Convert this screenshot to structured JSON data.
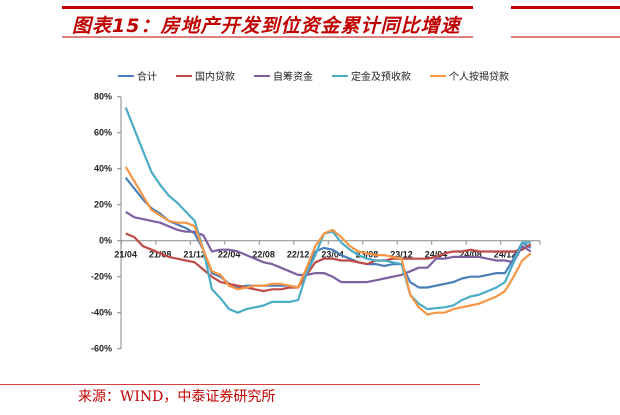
{
  "header": {
    "title": "图表15：房地产开发到位资金累计同比增速"
  },
  "footer": {
    "source": "来源：WIND，中泰证券研究所"
  },
  "chart_data": {
    "type": "line",
    "title": "图表15：房地产开发到位资金累计同比增速",
    "xlabel": "",
    "ylabel": "",
    "x": [
      "21/04",
      "21/05",
      "21/06",
      "21/07",
      "21/08",
      "21/09",
      "21/10",
      "21/11",
      "21/12",
      "22/01",
      "22/02",
      "22/03",
      "22/04",
      "22/05",
      "22/06",
      "22/07",
      "22/08",
      "22/09",
      "22/10",
      "22/11",
      "22/12",
      "23/01",
      "23/02",
      "23/03",
      "23/04",
      "23/05",
      "23/06",
      "23/07",
      "23/08",
      "23/09",
      "23/10",
      "23/11",
      "23/12",
      "24/01",
      "24/02",
      "24/03",
      "24/04",
      "24/05",
      "24/06",
      "24/07",
      "24/08",
      "24/09",
      "24/10",
      "24/11",
      "24/12",
      "25/01",
      "25/02",
      "25/03"
    ],
    "xticks": [
      "21/04",
      "21/08",
      "21/12",
      "22/04",
      "22/08",
      "22/12",
      "23/04",
      "23/08",
      "23/12",
      "24/04",
      "24/08",
      "24/12"
    ],
    "yticks": [
      "80%",
      "60%",
      "40%",
      "20%",
      "0%",
      "-20%",
      "-40%",
      "-60%"
    ],
    "ylim": [
      -60,
      80
    ],
    "grid": false,
    "legend_position": "top",
    "series": [
      {
        "name": "合计",
        "color": "#4a7ebb",
        "values": [
          35,
          29,
          23,
          18,
          15,
          11,
          9,
          7,
          4,
          -5,
          -18,
          -20,
          -24,
          -26,
          -25,
          -25,
          -25,
          -25,
          -25,
          -25,
          -26,
          -15,
          -6,
          -4,
          -5,
          -8,
          -10,
          -12,
          -13,
          -13,
          -14,
          -13,
          -13,
          -23,
          -26,
          -26,
          -25,
          -24,
          -23,
          -21,
          -20,
          -20,
          -19,
          -18,
          -18,
          -10,
          -1,
          -4
        ]
      },
      {
        "name": "国内贷款",
        "color": "#be4b48",
        "values": [
          4,
          2,
          -3,
          -5,
          -7,
          -9,
          -10,
          -11,
          -12,
          -16,
          -20,
          -23,
          -24,
          -25,
          -26,
          -27,
          -28,
          -27,
          -27,
          -26,
          -26,
          -19,
          -12,
          -10,
          -10,
          -11,
          -11,
          -12,
          -13,
          -11,
          -11,
          -10,
          -10,
          -10,
          -10,
          -10,
          -9,
          -7,
          -6,
          -6,
          -5,
          -6,
          -6,
          -6,
          -6,
          -6,
          -5,
          -2
        ]
      },
      {
        "name": "自筹资金",
        "color": "#7d60a0",
        "values": [
          16,
          13,
          12,
          11,
          10,
          8,
          6,
          5,
          5,
          3,
          -6,
          -5,
          -5,
          -6,
          -8,
          -10,
          -12,
          -13,
          -15,
          -17,
          -19,
          -19,
          -18,
          -18,
          -20,
          -23,
          -23,
          -23,
          -23,
          -22,
          -21,
          -20,
          -19,
          -17,
          -15,
          -15,
          -10,
          -10,
          -9,
          -9,
          -9,
          -9,
          -10,
          -11,
          -11,
          -12,
          -3,
          -6
        ]
      },
      {
        "name": "定金及预收款",
        "color": "#4bacc6",
        "values": [
          74,
          62,
          50,
          38,
          31,
          25,
          21,
          16,
          11,
          -5,
          -27,
          -32,
          -38,
          -40,
          -38,
          -37,
          -36,
          -34,
          -34,
          -34,
          -33,
          -18,
          -8,
          4,
          5,
          -1,
          -5,
          -8,
          -10,
          -11,
          -11,
          -12,
          -13,
          -30,
          -35,
          -38,
          -37.5,
          -37,
          -36,
          -33,
          -31,
          -30,
          -28,
          -26,
          -23,
          -12,
          -1,
          -1
        ]
      },
      {
        "name": "个人按揭贷款",
        "color": "#f79646",
        "values": [
          41,
          33,
          25,
          17,
          14,
          11,
          10,
          10,
          8,
          -5,
          -17,
          -19,
          -25,
          -27,
          -26,
          -25,
          -25,
          -24,
          -24,
          -25,
          -26,
          -15,
          -3,
          4,
          6,
          2,
          -3,
          -6,
          -7,
          -8,
          -8,
          -9,
          -10,
          -30,
          -37,
          -41,
          -40,
          -40,
          -38,
          -37,
          -36,
          -35,
          -33,
          -31,
          -28,
          -20,
          -11,
          -7
        ]
      }
    ]
  }
}
